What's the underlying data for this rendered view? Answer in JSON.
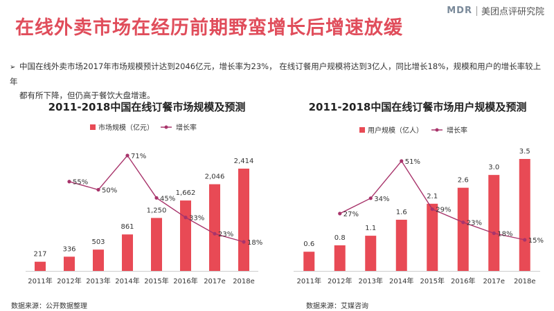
{
  "brand": {
    "logo_text": "MDR",
    "name": "美团点评研究院"
  },
  "title": "在线外卖市场在经历前期野蛮增长后增速放缓",
  "bullet": {
    "line1": "中国在线外卖市场2017年市场规模预计达到2046亿元，增长率为23%，  在线订餐用户规模将达到3亿人，同比增长18%，规模和用户的增长率较上年",
    "line2": "都有所下降，但仍高于餐饮大盘增速。"
  },
  "colors": {
    "bar": "#e84a55",
    "line": "#a8346b",
    "title": "#e04d5b"
  },
  "chart_data": [
    {
      "type": "bar",
      "title": "2011-2018中国在线订餐市场规模及预测",
      "categories": [
        "2011年",
        "2012年",
        "2013年",
        "2014年",
        "2015年",
        "2016年",
        "2017e",
        "2018e"
      ],
      "series": [
        {
          "name": "市场规模（亿元）",
          "type": "bar",
          "values": [
            217,
            336,
            503,
            861,
            1250,
            1662,
            2046,
            2414
          ],
          "labels": [
            "217",
            "336",
            "503",
            "861",
            "1,250",
            "1,662",
            "2,046",
            "2,414"
          ]
        },
        {
          "name": "增长率",
          "type": "line",
          "values": [
            null,
            55,
            50,
            71,
            45,
            33,
            23,
            18
          ],
          "labels": [
            "",
            "55%",
            "50%",
            "71%",
            "45%",
            "33%",
            "23%",
            "18%"
          ]
        }
      ],
      "source": "数据来源：公开数据整理"
    },
    {
      "type": "bar",
      "title": "2011-2018中国在线订餐市场用户规模及预测",
      "categories": [
        "2011年",
        "2012年",
        "2013年",
        "2014年",
        "2015年",
        "2016年",
        "2017e",
        "2018e"
      ],
      "series": [
        {
          "name": "用户规模（亿人）",
          "type": "bar",
          "values": [
            0.6,
            0.8,
            1.1,
            1.6,
            2.1,
            2.6,
            3.0,
            3.5
          ],
          "labels": [
            "0.6",
            "0.8",
            "1.1",
            "1.6",
            "2.1",
            "2.6",
            "3.0",
            "3.5"
          ]
        },
        {
          "name": "增长率",
          "type": "line",
          "values": [
            null,
            27,
            34,
            51,
            29,
            23,
            18,
            15
          ],
          "labels": [
            "",
            "27%",
            "34%",
            "51%",
            "29%",
            "23%",
            "18%",
            "15%"
          ]
        }
      ],
      "source": "数据来源：艾媒咨询"
    }
  ]
}
